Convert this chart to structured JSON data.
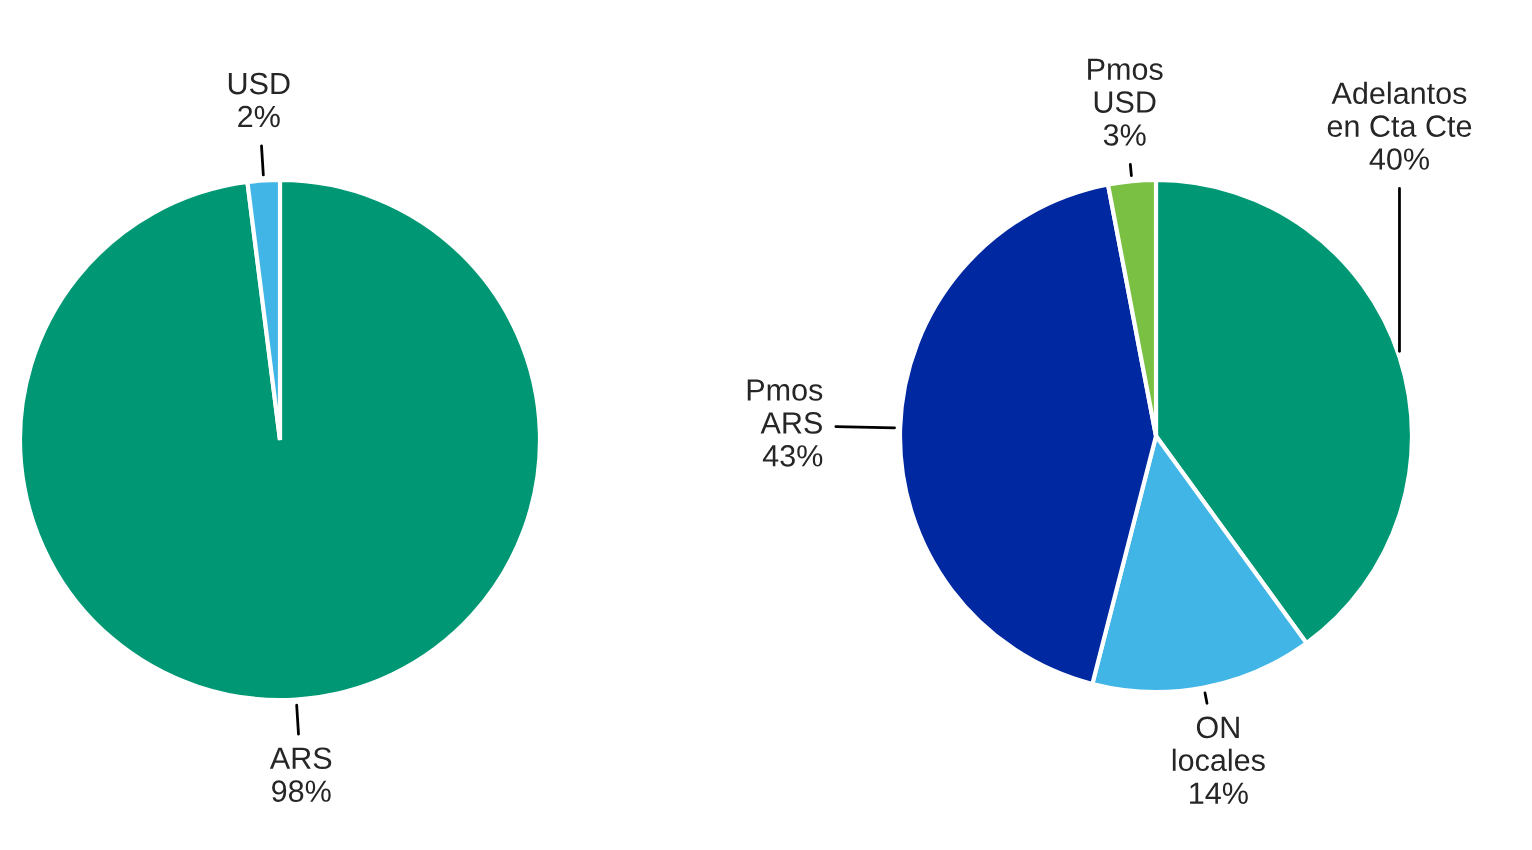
{
  "chart_data": [
    {
      "type": "pie",
      "categories": [
        "ARS",
        "USD"
      ],
      "values": [
        98,
        2
      ],
      "colors": [
        "#009874",
        "#41b6e6"
      ],
      "value_labels": [
        "98%",
        "2%"
      ]
    },
    {
      "type": "pie",
      "categories": [
        "Adelantos\nen Cta Cte",
        "ON\nlocales",
        "Pmos\nARS",
        "Pmos\nUSD"
      ],
      "values": [
        40,
        14,
        43,
        3
      ],
      "colors": [
        "#009874",
        "#41b6e6",
        "#0028a0",
        "#7ac143"
      ],
      "value_labels": [
        "40%",
        "14%",
        "43%",
        "3%"
      ]
    }
  ]
}
